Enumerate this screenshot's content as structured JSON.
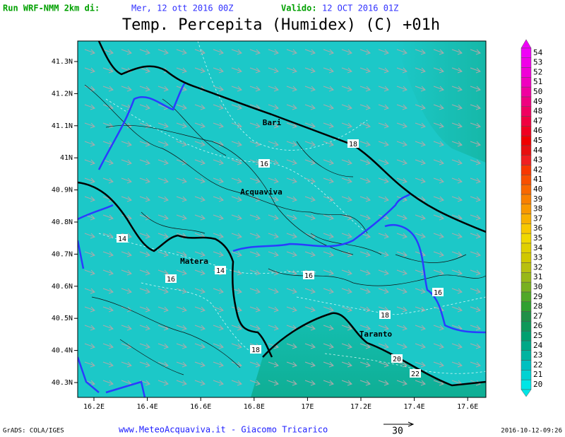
{
  "header": {
    "run_label": "Run WRF-NMM 2km di:",
    "run_date": "Mer, 12 ott 2016 00Z",
    "valid_label": "Valido:",
    "valid_date": "12 OCT 2016 01Z",
    "title": "Temp. Percepita (Humidex) (C) +01h"
  },
  "map": {
    "lat_labels": [
      "41.3N",
      "41.2N",
      "41.1N",
      "41N",
      "40.9N",
      "40.8N",
      "40.7N",
      "40.6N",
      "40.5N",
      "40.4N",
      "40.3N"
    ],
    "lon_labels": [
      "16.2E",
      "16.4E",
      "16.6E",
      "16.8E",
      "17E",
      "17.2E",
      "17.4E",
      "17.6E"
    ],
    "places": [
      "Bari",
      "Acquaviva",
      "Matera",
      "Taranto"
    ],
    "contour_labels": [
      "18",
      "16",
      "14",
      "14",
      "16",
      "16",
      "16",
      "18",
      "18",
      "20",
      "22"
    ]
  },
  "colorbar": {
    "levels": [
      20,
      21,
      22,
      23,
      24,
      25,
      26,
      27,
      28,
      29,
      30,
      31,
      32,
      33,
      34,
      35,
      36,
      37,
      38,
      39,
      40,
      41,
      42,
      43,
      44,
      45,
      46,
      47,
      48,
      49,
      50,
      51,
      52,
      53,
      54
    ],
    "colors": [
      "#00e6e6",
      "#00d2d2",
      "#00c0c0",
      "#00b4a0",
      "#00a887",
      "#00a070",
      "#10985a",
      "#209048",
      "#30a030",
      "#50a828",
      "#78b020",
      "#98b818",
      "#b8c010",
      "#d0c800",
      "#e0d000",
      "#f0d800",
      "#f8c800",
      "#f8b000",
      "#f89800",
      "#f88000",
      "#f86800",
      "#f85000",
      "#f83800",
      "#f02020",
      "#e81010",
      "#f00000",
      "#f00020",
      "#f00040",
      "#f00060",
      "#f00080",
      "#f000a0",
      "#f000c0",
      "#f000d8",
      "#f000e8",
      "#f000f8"
    ]
  },
  "footer": {
    "software": "GrADS: COLA/IGES",
    "credit": "www.MeteoAcquaviva.it - Giacomo Tricarico",
    "wind_scale": "30",
    "timestamp": "2016-10-12-09:26"
  }
}
